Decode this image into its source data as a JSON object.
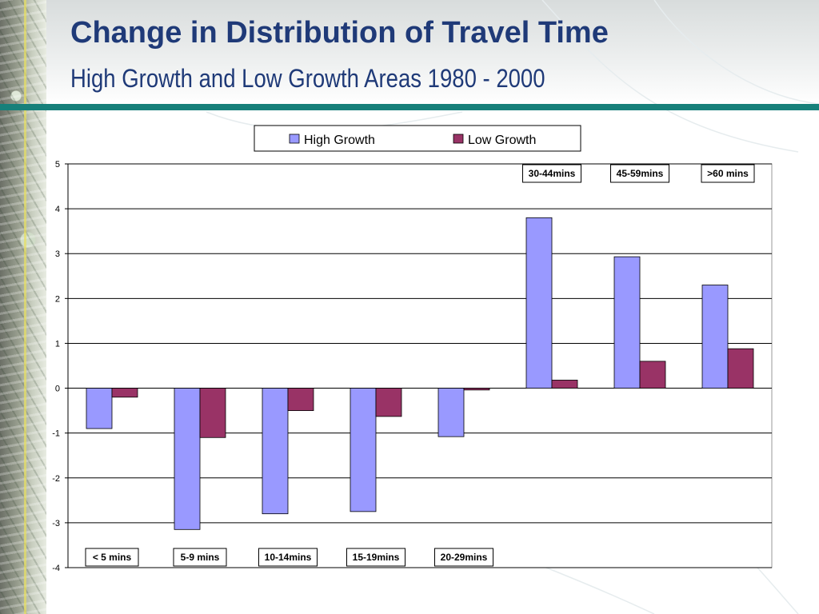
{
  "slide": {
    "title": "Change in Distribution of Travel Time",
    "subtitle": "High Growth and Low Growth Areas 1980 - 2000"
  },
  "chart_data": {
    "type": "bar",
    "title": "",
    "xlabel": "",
    "ylabel": "",
    "categories": [
      "< 5 mins",
      "5-9 mins",
      "10-14mins",
      "15-19mins",
      "20-29mins",
      "30-44mins",
      "45-59mins",
      ">60 mins"
    ],
    "series": [
      {
        "name": "High Growth",
        "color": "#9999ff",
        "values": [
          -0.9,
          -3.15,
          -2.8,
          -2.75,
          -1.08,
          3.8,
          2.93,
          2.3
        ]
      },
      {
        "name": "Low Growth",
        "color": "#993366",
        "values": [
          -0.2,
          -1.1,
          -0.5,
          -0.63,
          -0.04,
          0.18,
          0.6,
          0.88
        ]
      }
    ],
    "ylim": [
      -4,
      5
    ],
    "yticks": [
      -4,
      -3,
      -2,
      -1,
      0,
      1,
      2,
      3,
      4,
      5
    ],
    "grid": true,
    "legend_position": "top"
  }
}
